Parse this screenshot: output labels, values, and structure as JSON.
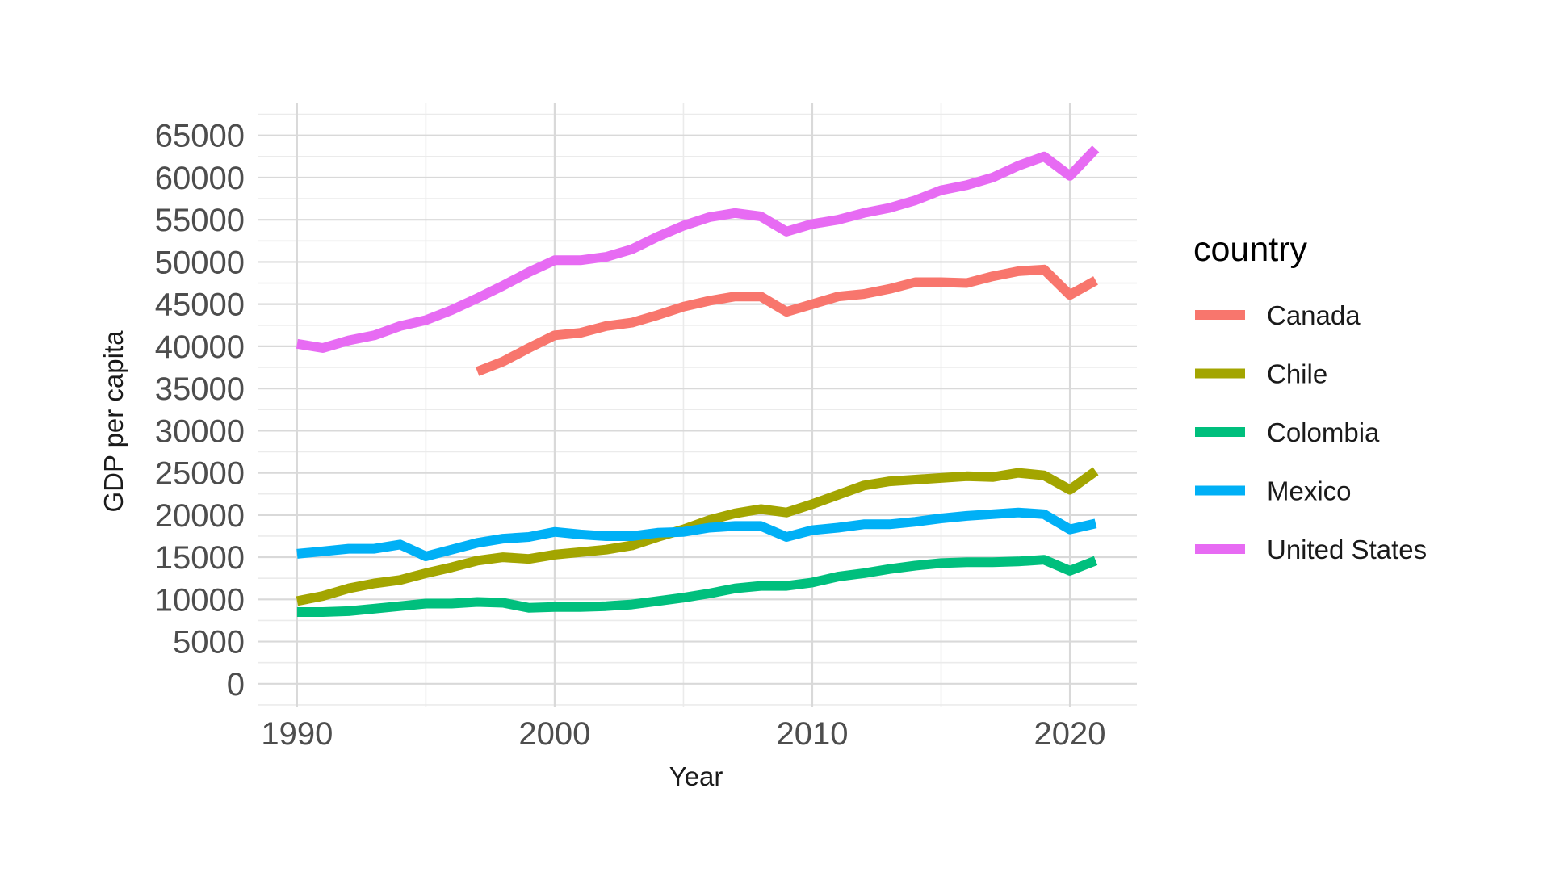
{
  "chart_data": {
    "type": "line",
    "title": "",
    "xlabel": "Year",
    "ylabel": "GDP per capita",
    "xlim": [
      1988.5,
      2022.6
    ],
    "ylim": [
      -2700,
      68800
    ],
    "x_ticks": [
      1990,
      2000,
      2010,
      2020
    ],
    "y_ticks": [
      0,
      5000,
      10000,
      15000,
      20000,
      25000,
      30000,
      35000,
      40000,
      45000,
      50000,
      55000,
      60000,
      65000
    ],
    "grid": true,
    "legend": {
      "title": "country",
      "position": "right"
    },
    "series": [
      {
        "name": "Canada",
        "color": "#F8766D",
        "points": [
          [
            1997,
            37000
          ],
          [
            1998,
            38200
          ],
          [
            1999,
            39800
          ],
          [
            2000,
            41300
          ],
          [
            2001,
            41600
          ],
          [
            2002,
            42400
          ],
          [
            2003,
            42800
          ],
          [
            2004,
            43700
          ],
          [
            2005,
            44700
          ],
          [
            2006,
            45400
          ],
          [
            2007,
            45900
          ],
          [
            2008,
            45900
          ],
          [
            2009,
            44100
          ],
          [
            2010,
            45000
          ],
          [
            2011,
            45900
          ],
          [
            2012,
            46200
          ],
          [
            2013,
            46800
          ],
          [
            2014,
            47600
          ],
          [
            2015,
            47600
          ],
          [
            2016,
            47500
          ],
          [
            2017,
            48300
          ],
          [
            2018,
            48900
          ],
          [
            2019,
            49100
          ],
          [
            2020,
            46100
          ],
          [
            2021,
            47800
          ]
        ]
      },
      {
        "name": "Chile",
        "color": "#A3A500",
        "points": [
          [
            1990,
            9800
          ],
          [
            1991,
            10400
          ],
          [
            1992,
            11300
          ],
          [
            1993,
            11900
          ],
          [
            1994,
            12300
          ],
          [
            1995,
            13100
          ],
          [
            1996,
            13800
          ],
          [
            1997,
            14600
          ],
          [
            1998,
            15000
          ],
          [
            1999,
            14800
          ],
          [
            2000,
            15300
          ],
          [
            2001,
            15600
          ],
          [
            2002,
            15900
          ],
          [
            2003,
            16400
          ],
          [
            2004,
            17400
          ],
          [
            2005,
            18300
          ],
          [
            2006,
            19400
          ],
          [
            2007,
            20200
          ],
          [
            2008,
            20700
          ],
          [
            2009,
            20300
          ],
          [
            2010,
            21300
          ],
          [
            2011,
            22400
          ],
          [
            2012,
            23500
          ],
          [
            2013,
            24000
          ],
          [
            2014,
            24200
          ],
          [
            2015,
            24400
          ],
          [
            2016,
            24600
          ],
          [
            2017,
            24500
          ],
          [
            2018,
            25000
          ],
          [
            2019,
            24700
          ],
          [
            2020,
            23000
          ],
          [
            2021,
            25200
          ]
        ]
      },
      {
        "name": "Colombia",
        "color": "#00BF7D",
        "points": [
          [
            1990,
            8500
          ],
          [
            1991,
            8500
          ],
          [
            1992,
            8600
          ],
          [
            1993,
            8900
          ],
          [
            1994,
            9200
          ],
          [
            1995,
            9500
          ],
          [
            1996,
            9500
          ],
          [
            1997,
            9700
          ],
          [
            1998,
            9600
          ],
          [
            1999,
            9000
          ],
          [
            2000,
            9100
          ],
          [
            2001,
            9100
          ],
          [
            2002,
            9200
          ],
          [
            2003,
            9400
          ],
          [
            2004,
            9800
          ],
          [
            2005,
            10200
          ],
          [
            2006,
            10700
          ],
          [
            2007,
            11300
          ],
          [
            2008,
            11600
          ],
          [
            2009,
            11600
          ],
          [
            2010,
            12000
          ],
          [
            2011,
            12700
          ],
          [
            2012,
            13100
          ],
          [
            2013,
            13600
          ],
          [
            2014,
            14000
          ],
          [
            2015,
            14300
          ],
          [
            2016,
            14400
          ],
          [
            2017,
            14400
          ],
          [
            2018,
            14500
          ],
          [
            2019,
            14700
          ],
          [
            2020,
            13400
          ],
          [
            2021,
            14600
          ]
        ]
      },
      {
        "name": "Mexico",
        "color": "#00B0F6",
        "points": [
          [
            1990,
            15400
          ],
          [
            1991,
            15700
          ],
          [
            1992,
            16000
          ],
          [
            1993,
            16000
          ],
          [
            1994,
            16500
          ],
          [
            1995,
            15100
          ],
          [
            1996,
            15900
          ],
          [
            1997,
            16700
          ],
          [
            1998,
            17200
          ],
          [
            1999,
            17400
          ],
          [
            2000,
            18000
          ],
          [
            2001,
            17700
          ],
          [
            2002,
            17500
          ],
          [
            2003,
            17500
          ],
          [
            2004,
            17900
          ],
          [
            2005,
            18000
          ],
          [
            2006,
            18500
          ],
          [
            2007,
            18700
          ],
          [
            2008,
            18700
          ],
          [
            2009,
            17400
          ],
          [
            2010,
            18200
          ],
          [
            2011,
            18500
          ],
          [
            2012,
            18900
          ],
          [
            2013,
            18900
          ],
          [
            2014,
            19200
          ],
          [
            2015,
            19600
          ],
          [
            2016,
            19900
          ],
          [
            2017,
            20100
          ],
          [
            2018,
            20300
          ],
          [
            2019,
            20100
          ],
          [
            2020,
            18300
          ],
          [
            2021,
            19000
          ]
        ]
      },
      {
        "name": "United States",
        "color": "#E76BF3",
        "points": [
          [
            1990,
            40300
          ],
          [
            1991,
            39800
          ],
          [
            1992,
            40700
          ],
          [
            1993,
            41300
          ],
          [
            1994,
            42400
          ],
          [
            1995,
            43100
          ],
          [
            1996,
            44300
          ],
          [
            1997,
            45700
          ],
          [
            1998,
            47200
          ],
          [
            1999,
            48800
          ],
          [
            2000,
            50200
          ],
          [
            2001,
            50200
          ],
          [
            2002,
            50600
          ],
          [
            2003,
            51500
          ],
          [
            2004,
            53000
          ],
          [
            2005,
            54300
          ],
          [
            2006,
            55300
          ],
          [
            2007,
            55800
          ],
          [
            2008,
            55400
          ],
          [
            2009,
            53600
          ],
          [
            2010,
            54500
          ],
          [
            2011,
            55000
          ],
          [
            2012,
            55800
          ],
          [
            2013,
            56400
          ],
          [
            2014,
            57300
          ],
          [
            2015,
            58500
          ],
          [
            2016,
            59100
          ],
          [
            2017,
            60000
          ],
          [
            2018,
            61400
          ],
          [
            2019,
            62500
          ],
          [
            2020,
            60200
          ],
          [
            2021,
            63400
          ]
        ]
      }
    ]
  }
}
